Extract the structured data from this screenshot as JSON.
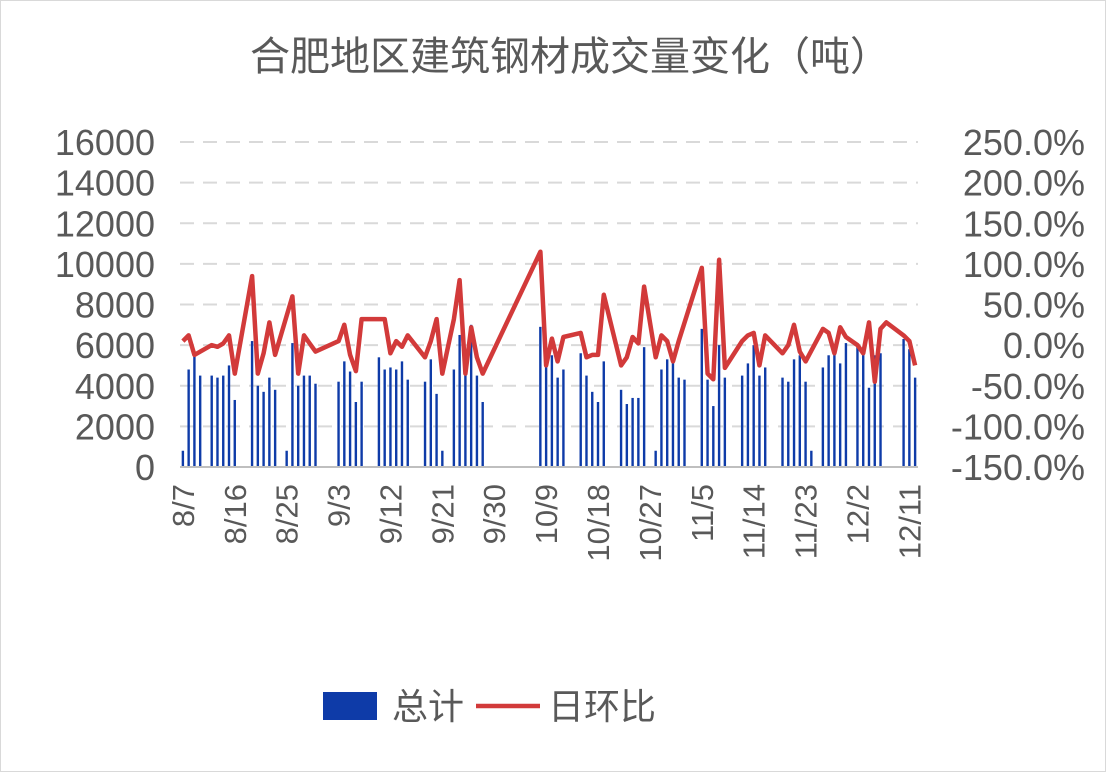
{
  "chart_data": {
    "type": "bar",
    "title": "合肥地区建筑钢材成交量变化（吨）",
    "xlabel": "",
    "ylabel": "",
    "ylim": [
      0,
      16000
    ],
    "y2lim": [
      -1.5,
      2.5
    ],
    "y_ticks": [
      "0",
      "2000",
      "4000",
      "6000",
      "8000",
      "10000",
      "12000",
      "14000",
      "16000"
    ],
    "y2_ticks": [
      "-150.0%",
      "-100.0%",
      "-50.0%",
      "0.0%",
      "50.0%",
      "100.0%",
      "150.0%",
      "200.0%",
      "250.0%"
    ],
    "x_ticks": [
      "8/7",
      "8/16",
      "8/25",
      "9/3",
      "9/12",
      "9/21",
      "9/30",
      "10/9",
      "10/18",
      "10/27",
      "11/5",
      "11/14",
      "11/23",
      "12/2",
      "12/11"
    ],
    "grid": true,
    "legend_position": "bottom",
    "series": [
      {
        "name": "总计",
        "color": "#0e3ba8",
        "type": "bar",
        "points": [
          [
            "8/7",
            800
          ],
          [
            "8/8",
            4800
          ],
          [
            "8/9",
            5500
          ],
          [
            "8/10",
            4500
          ],
          [
            "8/12",
            4500
          ],
          [
            "8/13",
            4400
          ],
          [
            "8/14",
            4500
          ],
          [
            "8/15",
            5000
          ],
          [
            "8/16",
            3300
          ],
          [
            "8/19",
            6200
          ],
          [
            "8/20",
            4000
          ],
          [
            "8/21",
            3700
          ],
          [
            "8/22",
            4400
          ],
          [
            "8/23",
            3800
          ],
          [
            "8/25",
            800
          ],
          [
            "8/26",
            6100
          ],
          [
            "8/27",
            4000
          ],
          [
            "8/28",
            4500
          ],
          [
            "8/29",
            4500
          ],
          [
            "8/30",
            4100
          ],
          [
            "9/3",
            4200
          ],
          [
            "9/4",
            5200
          ],
          [
            "9/5",
            4700
          ],
          [
            "9/6",
            3200
          ],
          [
            "9/7",
            4200
          ],
          [
            "9/10",
            5400
          ],
          [
            "9/11",
            4800
          ],
          [
            "9/12",
            4900
          ],
          [
            "9/13",
            4800
          ],
          [
            "9/14",
            5200
          ],
          [
            "9/15",
            4300
          ],
          [
            "9/18",
            4200
          ],
          [
            "9/19",
            5300
          ],
          [
            "9/20",
            3600
          ],
          [
            "9/21",
            800
          ],
          [
            "9/23",
            4800
          ],
          [
            "9/24",
            6500
          ],
          [
            "9/25",
            5000
          ],
          [
            "9/26",
            7000
          ],
          [
            "9/27",
            4500
          ],
          [
            "9/28",
            3200
          ],
          [
            "10/8",
            6900
          ],
          [
            "10/9",
            5700
          ],
          [
            "10/10",
            5500
          ],
          [
            "10/11",
            4400
          ],
          [
            "10/12",
            4800
          ],
          [
            "10/15",
            5600
          ],
          [
            "10/16",
            4500
          ],
          [
            "10/17",
            3700
          ],
          [
            "10/18",
            3200
          ],
          [
            "10/19",
            5200
          ],
          [
            "10/22",
            3800
          ],
          [
            "10/23",
            3100
          ],
          [
            "10/24",
            3400
          ],
          [
            "10/25",
            3400
          ],
          [
            "10/26",
            5900
          ],
          [
            "10/28",
            800
          ],
          [
            "10/29",
            4800
          ],
          [
            "10/30",
            5300
          ],
          [
            "10/31",
            5500
          ],
          [
            "11/1",
            4400
          ],
          [
            "11/2",
            4300
          ],
          [
            "11/5",
            6800
          ],
          [
            "11/6",
            4300
          ],
          [
            "11/7",
            3000
          ],
          [
            "11/8",
            6000
          ],
          [
            "11/9",
            4400
          ],
          [
            "11/12",
            4500
          ],
          [
            "11/13",
            5100
          ],
          [
            "11/14",
            6000
          ],
          [
            "11/15",
            4500
          ],
          [
            "11/16",
            4900
          ],
          [
            "11/19",
            4400
          ],
          [
            "11/20",
            4200
          ],
          [
            "11/21",
            5300
          ],
          [
            "11/22",
            5500
          ],
          [
            "11/23",
            4200
          ],
          [
            "11/24",
            800
          ],
          [
            "11/26",
            4900
          ],
          [
            "11/27",
            5500
          ],
          [
            "11/28",
            6000
          ],
          [
            "11/29",
            5100
          ],
          [
            "11/30",
            6100
          ],
          [
            "12/2",
            6000
          ],
          [
            "12/3",
            5700
          ],
          [
            "12/4",
            3900
          ],
          [
            "12/5",
            5500
          ],
          [
            "12/6",
            5600
          ],
          [
            "12/10",
            6300
          ],
          [
            "12/11",
            5800
          ],
          [
            "12/12",
            4400
          ]
        ]
      },
      {
        "name": "日环比",
        "color": "#d23a3a",
        "type": "line",
        "axis": "right",
        "points": [
          [
            "8/7",
            0.05
          ],
          [
            "8/8",
            0.12
          ],
          [
            "8/9",
            -0.12
          ],
          [
            "8/12",
            0.0
          ],
          [
            "8/13",
            -0.02
          ],
          [
            "8/14",
            0.02
          ],
          [
            "8/15",
            0.12
          ],
          [
            "8/16",
            -0.35
          ],
          [
            "8/19",
            0.85
          ],
          [
            "8/20",
            -0.35
          ],
          [
            "8/21",
            -0.1
          ],
          [
            "8/22",
            0.28
          ],
          [
            "8/23",
            -0.12
          ],
          [
            "8/26",
            0.6
          ],
          [
            "8/27",
            -0.35
          ],
          [
            "8/28",
            0.12
          ],
          [
            "8/29",
            0.02
          ],
          [
            "8/30",
            -0.08
          ],
          [
            "9/3",
            0.05
          ],
          [
            "9/4",
            0.25
          ],
          [
            "9/5",
            -0.12
          ],
          [
            "9/6",
            -0.32
          ],
          [
            "9/7",
            0.32
          ],
          [
            "9/10",
            0.32
          ],
          [
            "9/11",
            0.32
          ],
          [
            "9/12",
            -0.1
          ],
          [
            "9/13",
            0.05
          ],
          [
            "9/14",
            -0.02
          ],
          [
            "9/15",
            0.12
          ],
          [
            "9/18",
            -0.15
          ],
          [
            "9/19",
            0.05
          ],
          [
            "9/20",
            0.32
          ],
          [
            "9/21",
            -0.35
          ],
          [
            "9/23",
            0.32
          ],
          [
            "9/24",
            0.8
          ],
          [
            "9/25",
            -0.35
          ],
          [
            "9/26",
            0.22
          ],
          [
            "9/27",
            -0.15
          ],
          [
            "9/28",
            -0.35
          ],
          [
            "10/8",
            1.15
          ],
          [
            "10/9",
            -0.25
          ],
          [
            "10/10",
            0.08
          ],
          [
            "10/11",
            -0.2
          ],
          [
            "10/12",
            0.1
          ],
          [
            "10/15",
            0.15
          ],
          [
            "10/16",
            -0.15
          ],
          [
            "10/17",
            -0.12
          ],
          [
            "10/18",
            -0.12
          ],
          [
            "10/19",
            0.62
          ],
          [
            "10/22",
            -0.25
          ],
          [
            "10/23",
            -0.15
          ],
          [
            "10/24",
            0.1
          ],
          [
            "10/25",
            0.02
          ],
          [
            "10/26",
            0.72
          ],
          [
            "10/28",
            -0.15
          ],
          [
            "10/29",
            0.12
          ],
          [
            "10/30",
            0.05
          ],
          [
            "10/31",
            -0.2
          ],
          [
            "11/1",
            0.05
          ],
          [
            "11/5",
            0.95
          ],
          [
            "11/6",
            -0.35
          ],
          [
            "11/7",
            -0.42
          ],
          [
            "11/8",
            1.05
          ],
          [
            "11/9",
            -0.28
          ],
          [
            "11/12",
            0.05
          ],
          [
            "11/13",
            0.12
          ],
          [
            "11/14",
            0.15
          ],
          [
            "11/15",
            -0.25
          ],
          [
            "11/16",
            0.12
          ],
          [
            "11/19",
            -0.1
          ],
          [
            "11/20",
            0.0
          ],
          [
            "11/21",
            0.25
          ],
          [
            "11/22",
            -0.08
          ],
          [
            "11/23",
            -0.2
          ],
          [
            "11/26",
            0.2
          ],
          [
            "11/27",
            0.15
          ],
          [
            "11/28",
            -0.1
          ],
          [
            "11/29",
            0.22
          ],
          [
            "11/30",
            0.1
          ],
          [
            "12/2",
            0.0
          ],
          [
            "12/3",
            -0.1
          ],
          [
            "12/4",
            0.28
          ],
          [
            "12/5",
            -0.45
          ],
          [
            "12/6",
            0.2
          ],
          [
            "12/7",
            0.28
          ],
          [
            "12/10",
            0.12
          ],
          [
            "12/11",
            0.05
          ],
          [
            "12/12",
            -0.25
          ]
        ]
      }
    ]
  }
}
